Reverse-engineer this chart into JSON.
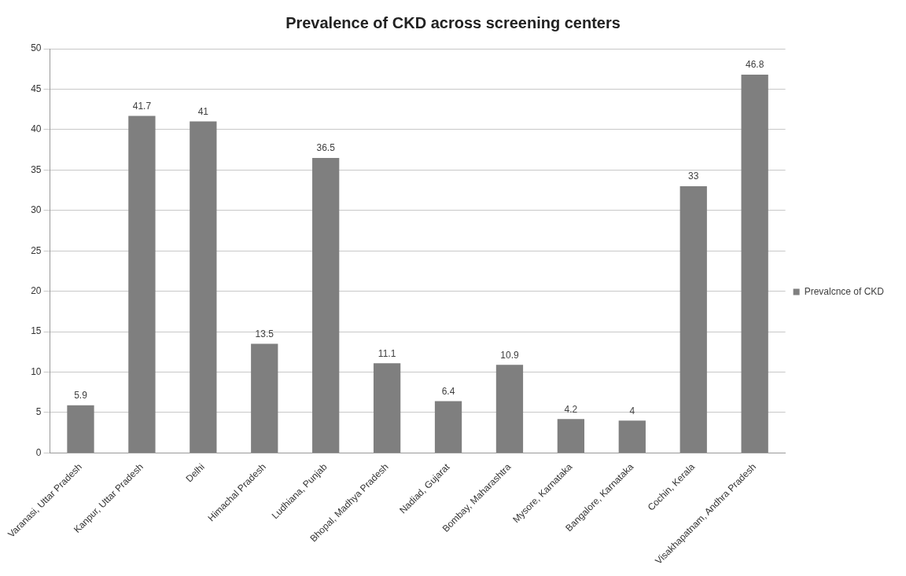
{
  "chart_data": {
    "type": "bar",
    "title": "Prevalence of CKD across screening centers",
    "categories": [
      "Varanasi, Uttar Pradesh",
      "Kanpur, Uttar Pradesh",
      "Delhi",
      "Himachal Pradesh",
      "Ludhiana, Punjab",
      "Bhopal, Madhya Pradesh",
      "Nadiad, Gujarat",
      "Bombay, Maharashtra",
      "Mysore, Karnataka",
      "Bangalore, Karnataka",
      "Cochin, Kerala",
      "Visakhapatnam, Andhra Pradesh"
    ],
    "series": [
      {
        "name": "Prevalcnce of CKD",
        "color": "#7f7f7f",
        "values": [
          5.9,
          41.7,
          41,
          13.5,
          36.5,
          11.1,
          6.4,
          10.9,
          4.2,
          4,
          33,
          46.8
        ]
      }
    ],
    "ylim": [
      0,
      50
    ],
    "yticks": [
      0,
      5,
      10,
      15,
      20,
      25,
      30,
      35,
      40,
      45,
      50
    ],
    "grid": "y",
    "legend": "right",
    "data_labels": true
  }
}
